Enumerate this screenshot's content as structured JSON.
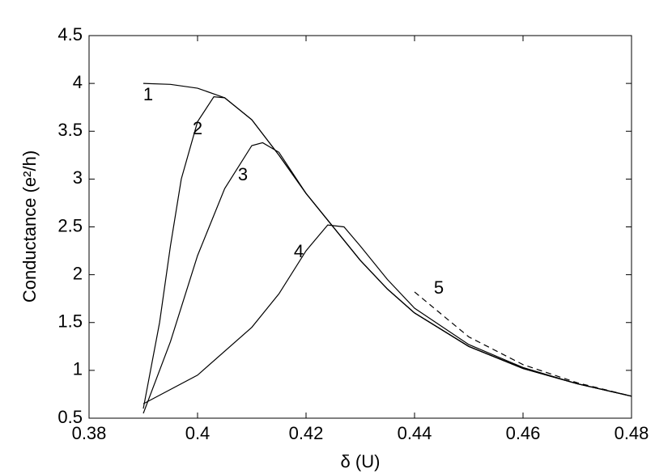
{
  "chart_data": {
    "type": "line",
    "xlabel": "δ (U)",
    "ylabel": "Conductance (e²/h)",
    "xlim": [
      0.38,
      0.48
    ],
    "xticks": [
      0.38,
      0.4,
      0.42,
      0.44,
      0.46,
      0.48
    ],
    "ylim": [
      0.5,
      4.5
    ],
    "yticks": [
      0.5,
      1,
      1.5,
      2,
      2.5,
      3,
      3.5,
      4,
      4.5
    ],
    "grid": false,
    "series": [
      {
        "name": "1",
        "color": "#000000",
        "dash": false,
        "x": [
          0.39,
          0.395,
          0.4,
          0.405,
          0.41,
          0.415,
          0.42,
          0.425,
          0.43,
          0.435,
          0.44,
          0.45,
          0.46,
          0.47,
          0.48
        ],
        "values": [
          4.0,
          3.99,
          3.95,
          3.85,
          3.62,
          3.25,
          2.85,
          2.5,
          2.15,
          1.85,
          1.6,
          1.25,
          1.02,
          0.86,
          0.73
        ]
      },
      {
        "name": "2",
        "color": "#000000",
        "dash": false,
        "x": [
          0.39,
          0.393,
          0.395,
          0.397,
          0.4,
          0.403,
          0.405,
          0.41,
          0.415,
          0.42,
          0.425,
          0.43,
          0.435,
          0.44,
          0.45,
          0.46,
          0.47,
          0.48
        ],
        "values": [
          0.6,
          1.5,
          2.3,
          3.0,
          3.6,
          3.86,
          3.85,
          3.62,
          3.25,
          2.85,
          2.5,
          2.15,
          1.85,
          1.6,
          1.25,
          1.02,
          0.86,
          0.73
        ]
      },
      {
        "name": "3",
        "color": "#000000",
        "dash": false,
        "x": [
          0.39,
          0.395,
          0.4,
          0.405,
          0.41,
          0.412,
          0.415,
          0.42,
          0.425,
          0.43,
          0.435,
          0.44,
          0.45,
          0.46,
          0.47,
          0.48
        ],
        "values": [
          0.55,
          1.3,
          2.2,
          2.9,
          3.35,
          3.38,
          3.28,
          2.85,
          2.5,
          2.15,
          1.85,
          1.6,
          1.25,
          1.02,
          0.86,
          0.73
        ]
      },
      {
        "name": "4",
        "color": "#000000",
        "dash": false,
        "x": [
          0.39,
          0.4,
          0.41,
          0.415,
          0.42,
          0.424,
          0.427,
          0.43,
          0.435,
          0.44,
          0.45,
          0.46,
          0.47,
          0.48
        ],
        "values": [
          0.65,
          0.95,
          1.45,
          1.8,
          2.25,
          2.52,
          2.5,
          2.3,
          1.95,
          1.65,
          1.27,
          1.03,
          0.86,
          0.73
        ]
      },
      {
        "name": "5",
        "color": "#000000",
        "dash": true,
        "x": [
          0.44,
          0.45,
          0.46,
          0.47,
          0.48
        ],
        "values": [
          1.82,
          1.35,
          1.06,
          0.87,
          0.73
        ]
      }
    ]
  }
}
